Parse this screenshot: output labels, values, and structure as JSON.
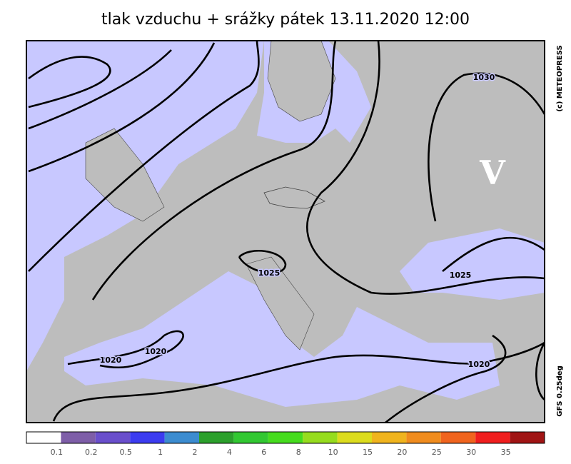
{
  "header": {
    "title": "tlak vzduchu + srážky   pátek 13.11.2020 12:00"
  },
  "credits": {
    "copyright": "(c) METEOPRESS",
    "model": "GFS 0.25deg"
  },
  "map": {
    "high_label": "V",
    "isobar_labels": [
      "1030",
      "1025",
      "1025",
      "1020",
      "1020",
      "1020"
    ]
  },
  "legend": {
    "colors": [
      "#ffffff",
      "#7e5ea8",
      "#6a4fcc",
      "#3c3cf0",
      "#3c8cd0",
      "#2ca02c",
      "#32c832",
      "#46dc1e",
      "#96dc1e",
      "#dcdc1e",
      "#f0b41e",
      "#f08c1e",
      "#f0641e",
      "#f01e1e",
      "#a01414"
    ],
    "labels": [
      "0.1",
      "0.2",
      "0.5",
      "1",
      "2",
      "4",
      "6",
      "8",
      "10",
      "15",
      "20",
      "25",
      "30",
      "35"
    ]
  }
}
